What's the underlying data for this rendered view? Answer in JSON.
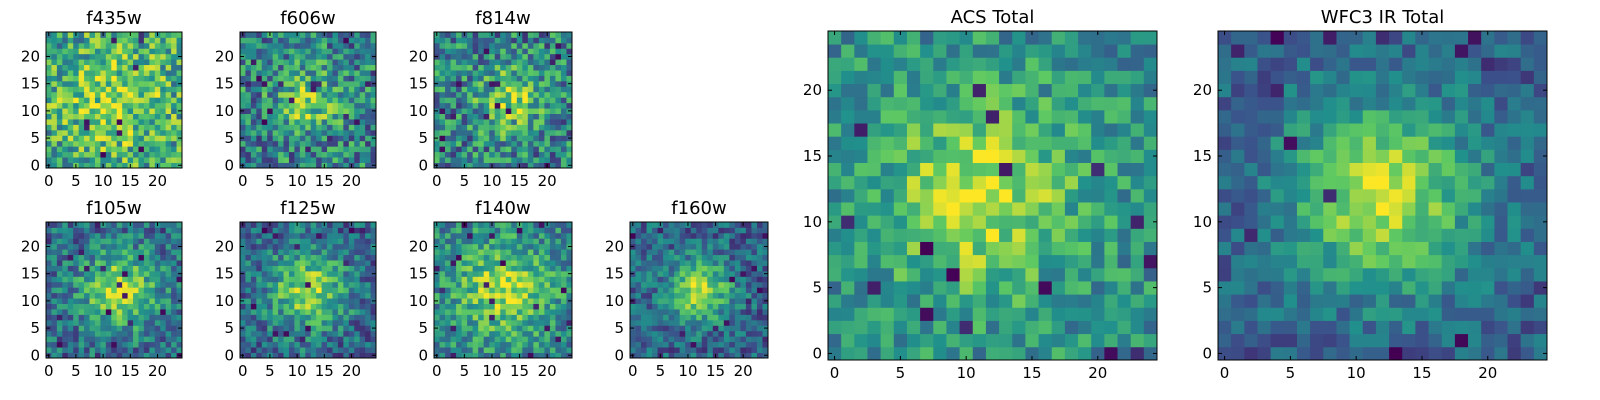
{
  "colors": {
    "colormap": [
      "#440154",
      "#3b528b",
      "#21918c",
      "#5ec962",
      "#fde725"
    ],
    "frame": "#000000",
    "background": "#ffffff"
  },
  "chart_data": [
    {
      "type": "heatmap",
      "title": "f435w",
      "grid": [
        25,
        25
      ],
      "xlim": [
        0,
        25
      ],
      "ylim": [
        0,
        25
      ],
      "xticks": [
        0,
        5,
        10,
        15,
        20
      ],
      "yticks": [
        0,
        5,
        10,
        15,
        20
      ],
      "center": [
        12,
        12
      ],
      "peak": 0.25,
      "sigma": 8,
      "noise": 0.6,
      "seed": 11,
      "base": 0.55
    },
    {
      "type": "heatmap",
      "title": "f606w",
      "grid": [
        25,
        25
      ],
      "xlim": [
        0,
        25
      ],
      "ylim": [
        0,
        25
      ],
      "xticks": [
        0,
        5,
        10,
        15,
        20
      ],
      "yticks": [
        0,
        5,
        10,
        15,
        20
      ],
      "center": [
        12,
        12
      ],
      "peak": 0.35,
      "sigma": 4,
      "noise": 0.6,
      "seed": 23,
      "base": 0.45
    },
    {
      "type": "heatmap",
      "title": "f814w",
      "grid": [
        25,
        25
      ],
      "xlim": [
        0,
        25
      ],
      "ylim": [
        0,
        25
      ],
      "xticks": [
        0,
        5,
        10,
        15,
        20
      ],
      "yticks": [
        0,
        5,
        10,
        15,
        20
      ],
      "center": [
        13,
        12
      ],
      "peak": 0.35,
      "sigma": 4,
      "noise": 0.6,
      "seed": 37,
      "base": 0.45
    },
    {
      "type": "heatmap",
      "title": "f105w",
      "grid": [
        25,
        25
      ],
      "xlim": [
        0,
        25
      ],
      "ylim": [
        0,
        25
      ],
      "xticks": [
        0,
        5,
        10,
        15,
        20
      ],
      "yticks": [
        0,
        5,
        10,
        15,
        20
      ],
      "center": [
        13,
        12
      ],
      "peak": 0.5,
      "sigma": 5,
      "noise": 0.45,
      "seed": 41,
      "base": 0.35
    },
    {
      "type": "heatmap",
      "title": "f125w",
      "grid": [
        25,
        25
      ],
      "xlim": [
        0,
        25
      ],
      "ylim": [
        0,
        25
      ],
      "xticks": [
        0,
        5,
        10,
        15,
        20
      ],
      "yticks": [
        0,
        5,
        10,
        15,
        20
      ],
      "center": [
        12,
        12
      ],
      "peak": 0.5,
      "sigma": 5,
      "noise": 0.45,
      "seed": 53,
      "base": 0.33
    },
    {
      "type": "heatmap",
      "title": "f140w",
      "grid": [
        25,
        25
      ],
      "xlim": [
        0,
        25
      ],
      "ylim": [
        0,
        25
      ],
      "xticks": [
        0,
        5,
        10,
        15,
        20
      ],
      "yticks": [
        0,
        5,
        10,
        15,
        20
      ],
      "center": [
        12,
        12
      ],
      "peak": 0.4,
      "sigma": 6,
      "noise": 0.45,
      "seed": 67,
      "base": 0.45
    },
    {
      "type": "heatmap",
      "title": "f160w",
      "grid": [
        25,
        25
      ],
      "xlim": [
        0,
        25
      ],
      "ylim": [
        0,
        25
      ],
      "xticks": [
        0,
        5,
        10,
        15,
        20
      ],
      "yticks": [
        0,
        5,
        10,
        15,
        20
      ],
      "center": [
        12,
        12
      ],
      "peak": 0.55,
      "sigma": 4,
      "noise": 0.4,
      "seed": 71,
      "base": 0.32
    },
    {
      "type": "heatmap",
      "title": "ACS Total",
      "grid": [
        25,
        25
      ],
      "xlim": [
        0,
        25
      ],
      "ylim": [
        0,
        25
      ],
      "xticks": [
        0,
        5,
        10,
        15,
        20
      ],
      "yticks": [
        0,
        5,
        10,
        15,
        20
      ],
      "center": [
        11,
        12
      ],
      "peak": 0.4,
      "sigma": 5,
      "noise": 0.4,
      "seed": 83,
      "base": 0.5
    },
    {
      "type": "heatmap",
      "title": "WFC3 IR Total",
      "grid": [
        25,
        25
      ],
      "xlim": [
        0,
        25
      ],
      "ylim": [
        0,
        25
      ],
      "xticks": [
        0,
        5,
        10,
        15,
        20
      ],
      "yticks": [
        0,
        5,
        10,
        15,
        20
      ],
      "center": [
        12,
        12
      ],
      "peak": 0.6,
      "sigma": 5,
      "noise": 0.3,
      "seed": 97,
      "base": 0.3
    }
  ]
}
